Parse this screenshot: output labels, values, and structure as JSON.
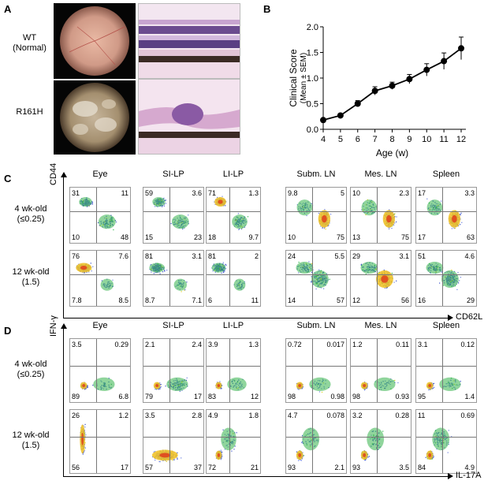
{
  "panelA": {
    "letter": "A",
    "rows": [
      {
        "label_line1": "WT",
        "label_line2": "(Normal)"
      },
      {
        "label_line1": "R161H",
        "label_line2": ""
      }
    ]
  },
  "panelB": {
    "letter": "B"
  },
  "chart_data": {
    "type": "line",
    "title": "",
    "xlabel": "Age (w)",
    "ylabel": "Clinical Score",
    "ylabel2": "(Mean ± SEM)",
    "x": [
      4,
      5,
      6,
      7,
      8,
      9,
      10,
      11,
      12
    ],
    "y": [
      0.18,
      0.27,
      0.5,
      0.75,
      0.85,
      0.98,
      1.16,
      1.33,
      1.58
    ],
    "err": [
      0.03,
      0.03,
      0.06,
      0.08,
      0.07,
      0.09,
      0.12,
      0.16,
      0.22
    ],
    "xlim": [
      4,
      12
    ],
    "ylim": [
      0,
      2.0
    ],
    "yticks": [
      "0.0",
      "0.5",
      "1.0",
      "1.5",
      "2.0"
    ],
    "xticks": [
      "4",
      "5",
      "6",
      "7",
      "8",
      "9",
      "10",
      "11",
      "12"
    ]
  },
  "panelC": {
    "letter": "C",
    "columns": [
      "Eye",
      "SI-LP",
      "LI-LP",
      "Subm. LN",
      "Mes. LN",
      "Spleen"
    ],
    "row_labels": [
      {
        "line1": "4 wk-old",
        "line2": "(≤0.25)"
      },
      {
        "line1": "12 wk-old",
        "line2": "(1.5)"
      }
    ],
    "y_axis": "CD44",
    "x_axis": "CD62L",
    "quadrants": [
      [
        {
          "ul": "31",
          "ur": "11",
          "ll": "10",
          "lr": "48"
        },
        {
          "ul": "59",
          "ur": "3.6",
          "ll": "15",
          "lr": "23"
        },
        {
          "ul": "71",
          "ur": "1.3",
          "ll": "18",
          "lr": "9.7"
        },
        {
          "ul": "9.8",
          "ur": "5",
          "ll": "10",
          "lr": "75"
        },
        {
          "ul": "10",
          "ur": "2.3",
          "ll": "13",
          "lr": "75"
        },
        {
          "ul": "17",
          "ur": "3.3",
          "ll": "17",
          "lr": "63"
        }
      ],
      [
        {
          "ul": "76",
          "ur": "7.6",
          "ll": "7.8",
          "lr": "8.5"
        },
        {
          "ul": "81",
          "ur": "3.1",
          "ll": "8.7",
          "lr": "7.1"
        },
        {
          "ul": "81",
          "ur": "2",
          "ll": "6",
          "lr": "11"
        },
        {
          "ul": "24",
          "ur": "5.5",
          "ll": "14",
          "lr": "57"
        },
        {
          "ul": "29",
          "ur": "3.1",
          "ll": "12",
          "lr": "56"
        },
        {
          "ul": "51",
          "ur": "4.6",
          "ll": "16",
          "lr": "29"
        }
      ]
    ]
  },
  "panelD": {
    "letter": "D",
    "columns": [
      "Eye",
      "SI-LP",
      "LI-LP",
      "Subm. LN",
      "Mes. LN",
      "Spleen"
    ],
    "row_labels": [
      {
        "line1": "4 wk-old",
        "line2": "(≤0.25)"
      },
      {
        "line1": "12 wk-old",
        "line2": "(1.5)"
      }
    ],
    "y_axis": "IFN-γ",
    "x_axis": "IL-17A",
    "quadrants": [
      [
        {
          "ul": "3.5",
          "ur": "0.29",
          "ll": "89",
          "lr": "6.8"
        },
        {
          "ul": "2.1",
          "ur": "2.4",
          "ll": "79",
          "lr": "17"
        },
        {
          "ul": "3.9",
          "ur": "1.3",
          "ll": "83",
          "lr": "12"
        },
        {
          "ul": "0.72",
          "ur": "0.017",
          "ll": "98",
          "lr": "0.98"
        },
        {
          "ul": "1.2",
          "ur": "0.11",
          "ll": "98",
          "lr": "0.93"
        },
        {
          "ul": "3.1",
          "ur": "0.12",
          "ll": "95",
          "lr": "1.4"
        }
      ],
      [
        {
          "ul": "26",
          "ur": "1.2",
          "ll": "56",
          "lr": "17"
        },
        {
          "ul": "3.5",
          "ur": "2.8",
          "ll": "57",
          "lr": "37"
        },
        {
          "ul": "4.9",
          "ur": "1.8",
          "ll": "72",
          "lr": "21"
        },
        {
          "ul": "4.7",
          "ur": "0.078",
          "ll": "93",
          "lr": "2.1"
        },
        {
          "ul": "3.2",
          "ur": "0.28",
          "ll": "93",
          "lr": "3.5"
        },
        {
          "ul": "11",
          "ur": "0.69",
          "ll": "84",
          "lr": "4.9"
        }
      ]
    ]
  }
}
